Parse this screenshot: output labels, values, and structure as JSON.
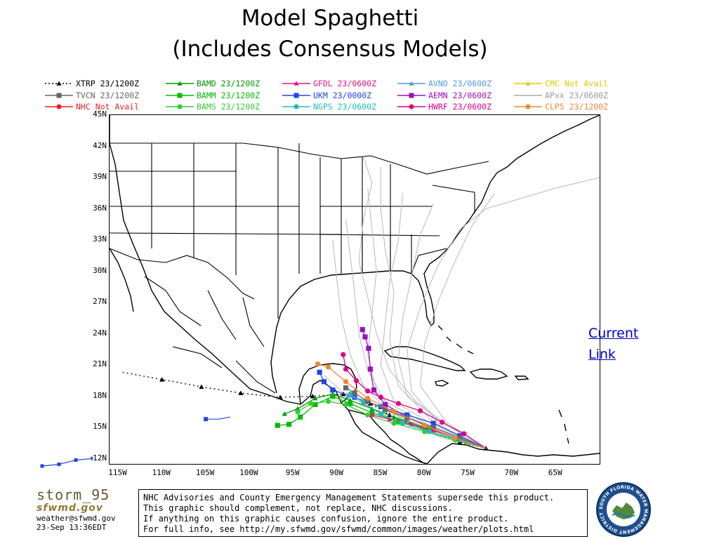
{
  "title": {
    "line1": "Model Spaghetti",
    "line2": "(Includes Consensus Models)"
  },
  "legend": [
    {
      "label": "XTRP  23/1200Z",
      "color": "#000000",
      "marker": "triangle",
      "dash": "2,3"
    },
    {
      "label": "BAMD 23/1200Z",
      "color": "#009900",
      "marker": "triangle",
      "dash": ""
    },
    {
      "label": "GFDL  23/0600Z",
      "color": "#ee1188",
      "marker": "triangle",
      "dash": ""
    },
    {
      "label": "AVNO 23/0600Z",
      "color": "#5599dd",
      "marker": "triangle",
      "dash": ""
    },
    {
      "label": "CMC Not Avail",
      "color": "#ddcc00",
      "marker": "triangle",
      "dash": ""
    },
    {
      "label": "TVCN 23/1200Z",
      "color": "#666666",
      "marker": "square",
      "dash": ""
    },
    {
      "label": "BAMM 23/1200Z",
      "color": "#00bb00",
      "marker": "square",
      "dash": ""
    },
    {
      "label": "UKM  23/0000Z",
      "color": "#2244ee",
      "marker": "square",
      "dash": ""
    },
    {
      "label": "AEMN 23/0600Z",
      "color": "#9911bb",
      "marker": "square",
      "dash": ""
    },
    {
      "label": "APxx 23/0600Z",
      "color": "#aaaaaa",
      "marker": "none",
      "dash": ""
    },
    {
      "label": "NHC  Not Avail",
      "color": "#ee2222",
      "marker": "circle",
      "dash": ""
    },
    {
      "label": "BAMS 23/1200Z",
      "color": "#33cc33",
      "marker": "circle",
      "dash": ""
    },
    {
      "label": "NGPS 23/0600Z",
      "color": "#22bbbb",
      "marker": "circle",
      "dash": ""
    },
    {
      "label": "HWRF 23/0600Z",
      "color": "#dd0088",
      "marker": "circle",
      "dash": ""
    },
    {
      "label": "CLP5 23/1200Z",
      "color": "#ee8833",
      "marker": "circle",
      "dash": ""
    }
  ],
  "map": {
    "lat_labels": [
      "45N",
      "42N",
      "39N",
      "36N",
      "33N",
      "30N",
      "27N",
      "24N",
      "21N",
      "18N",
      "15N",
      "12N"
    ],
    "lon_labels": [
      "115W",
      "110W",
      "105W",
      "100W",
      "95W",
      "90W",
      "85W",
      "80W",
      "75W",
      "70W",
      "65W"
    ],
    "lat_range": [
      11.5,
      45
    ],
    "lon_range": [
      -116,
      -60
    ]
  },
  "current_link": "Current Link",
  "logo": {
    "title": "storm_95",
    "sub": "sfwmd.gov",
    "email": "weather@sfwmd.gov",
    "timestamp": "23-Sep 13:36EDT"
  },
  "disclaimer": [
    "NHC Advisories and County Emergency Management Statements supersede this product.",
    "This graphic should complement, not replace, NHC discussions.",
    "If anything on this graphic causes confusion, ignore the entire product.",
    "For full info, see  http://my.sfwmd.gov/sfwmd/common/images/weather/plots.html"
  ],
  "seal_text": "SOUTH FLORIDA WATER MANAGEMENT DISTRICT",
  "tracks": [
    {
      "name": "XTRP",
      "color": "#000000",
      "marker": "triangle",
      "dash": "2,4",
      "points": [
        [
          -114.5,
          20.3
        ],
        [
          -110,
          19.6
        ],
        [
          -105.5,
          18.9
        ],
        [
          -101,
          18.3
        ],
        [
          -96.5,
          17.9
        ],
        [
          -92.8,
          18.0
        ],
        [
          -89.3,
          18.2
        ],
        [
          -86.2,
          17.3
        ],
        [
          -84.0,
          16.2
        ],
        [
          -80.0,
          14.8
        ],
        [
          -76.0,
          13.6
        ],
        [
          -73.0,
          13.0
        ]
      ]
    },
    {
      "name": "BAMD",
      "color": "#009900",
      "marker": "triangle",
      "dash": "",
      "points": [
        [
          -73.0,
          13.0
        ],
        [
          -76.5,
          14.0
        ],
        [
          -80.0,
          15.0
        ],
        [
          -83.5,
          16.0
        ],
        [
          -86.0,
          16.8
        ],
        [
          -88.5,
          17.6
        ],
        [
          -90.5,
          18.2
        ],
        [
          -92.5,
          17.8
        ],
        [
          -94.5,
          16.8
        ],
        [
          -96.0,
          16.3
        ]
      ]
    },
    {
      "name": "BAMM",
      "color": "#00bb00",
      "marker": "square",
      "dash": "",
      "points": [
        [
          -73.0,
          13.0
        ],
        [
          -76.0,
          13.9
        ],
        [
          -79.5,
          14.8
        ],
        [
          -83.0,
          15.6
        ],
        [
          -86.0,
          16.4
        ],
        [
          -88.5,
          17.3
        ],
        [
          -90.5,
          18.0
        ],
        [
          -92.5,
          17.2
        ],
        [
          -94.2,
          16.0
        ],
        [
          -95.5,
          15.3
        ],
        [
          -96.8,
          15.2
        ]
      ]
    },
    {
      "name": "BAMS",
      "color": "#33cc33",
      "marker": "circle",
      "dash": "",
      "points": [
        [
          -73.0,
          13.0
        ],
        [
          -76.5,
          13.8
        ],
        [
          -80.0,
          14.6
        ],
        [
          -83.5,
          15.4
        ],
        [
          -86.5,
          16.2
        ],
        [
          -89.0,
          17.2
        ],
        [
          -91.0,
          17.5
        ],
        [
          -93.0,
          17.3
        ],
        [
          -94.5,
          16.5
        ]
      ]
    },
    {
      "name": "GFDL",
      "color": "#ee1188",
      "marker": "triangle",
      "dash": "",
      "points": [
        [
          -73.0,
          13.0
        ],
        [
          -76.0,
          13.9
        ],
        [
          -79.0,
          14.7
        ],
        [
          -81.5,
          15.3
        ],
        [
          -84.0,
          15.8
        ],
        [
          -86.0,
          16.2
        ]
      ]
    },
    {
      "name": "HWRF",
      "color": "#dd0088",
      "marker": "circle",
      "dash": "",
      "points": [
        [
          -73.0,
          13.0
        ],
        [
          -75.5,
          14.4
        ],
        [
          -78.0,
          15.5
        ],
        [
          -80.5,
          16.6
        ],
        [
          -83.0,
          17.3
        ],
        [
          -85.0,
          17.9
        ],
        [
          -86.5,
          18.5
        ],
        [
          -87.8,
          19.5
        ],
        [
          -89.0,
          20.6
        ],
        [
          -89.3,
          22.0
        ]
      ]
    },
    {
      "name": "AEMN",
      "color": "#9911bb",
      "marker": "square",
      "dash": "",
      "points": [
        [
          -73.0,
          13.0
        ],
        [
          -76.0,
          14.0
        ],
        [
          -79.0,
          15.0
        ],
        [
          -82.0,
          16.0
        ],
        [
          -84.5,
          17.2
        ],
        [
          -85.8,
          18.6
        ],
        [
          -86.2,
          20.6
        ],
        [
          -86.4,
          22.6
        ],
        [
          -86.8,
          23.7
        ],
        [
          -87.1,
          24.4
        ]
      ]
    },
    {
      "name": "UKM",
      "color": "#2244ee",
      "marker": "square",
      "dash": "",
      "points": [
        [
          -73.0,
          13.0
        ],
        [
          -76.0,
          14.2
        ],
        [
          -79.0,
          15.4
        ],
        [
          -82.0,
          16.2
        ],
        [
          -85.0,
          17.0
        ],
        [
          -88.0,
          17.9
        ],
        [
          -90.5,
          18.6
        ],
        [
          -91.5,
          19.4
        ],
        [
          -92.0,
          20.3
        ]
      ]
    },
    {
      "name": "NGPS",
      "color": "#22bbbb",
      "marker": "circle",
      "dash": "",
      "points": [
        [
          -73.0,
          13.0
        ],
        [
          -76.0,
          13.8
        ],
        [
          -79.5,
          14.6
        ],
        [
          -82.5,
          15.4
        ],
        [
          -85.0,
          16.3
        ],
        [
          -87.0,
          17.4
        ],
        [
          -88.5,
          18.2
        ]
      ]
    },
    {
      "name": "AVNO",
      "color": "#5599dd",
      "marker": "triangle",
      "dash": "",
      "points": [
        [
          -73.0,
          13.0
        ],
        [
          -76.0,
          14.0
        ],
        [
          -79.0,
          15.0
        ],
        [
          -82.0,
          16.0
        ],
        [
          -84.5,
          16.8
        ],
        [
          -86.8,
          17.6
        ],
        [
          -88.8,
          18.0
        ]
      ]
    },
    {
      "name": "TVCN",
      "color": "#666666",
      "marker": "square",
      "dash": "",
      "points": [
        [
          -73.0,
          13.0
        ],
        [
          -76.0,
          14.0
        ],
        [
          -79.0,
          15.0
        ],
        [
          -82.0,
          15.9
        ],
        [
          -84.5,
          16.7
        ],
        [
          -86.5,
          17.5
        ],
        [
          -88.0,
          18.3
        ],
        [
          -89.0,
          18.8
        ]
      ]
    },
    {
      "name": "CLP5",
      "color": "#ee8833",
      "marker": "circle",
      "dash": "",
      "points": [
        [
          -73.0,
          13.0
        ],
        [
          -76.5,
          14.0
        ],
        [
          -80.0,
          15.2
        ],
        [
          -83.5,
          16.5
        ],
        [
          -86.5,
          17.8
        ],
        [
          -89.0,
          19.4
        ],
        [
          -91.0,
          20.8
        ],
        [
          -92.2,
          21.1
        ]
      ]
    }
  ],
  "apxx_tracks": [
    [
      [
        -73.0,
        13.0
      ],
      [
        -78.0,
        14.5
      ],
      [
        -83.0,
        16.0
      ],
      [
        -85.5,
        18.5
      ],
      [
        -86.5,
        22.0
      ],
      [
        -86.0,
        26.0
      ],
      [
        -85.5,
        30.0
      ],
      [
        -86.0,
        34.0
      ],
      [
        -86.5,
        38.0
      ]
    ],
    [
      [
        -73.0,
        13.0
      ],
      [
        -78.5,
        15.0
      ],
      [
        -83.5,
        17.5
      ],
      [
        -85.0,
        21.0
      ],
      [
        -84.5,
        25.0
      ],
      [
        -84.0,
        29.0
      ],
      [
        -83.0,
        33.0
      ],
      [
        -82.5,
        37.5
      ]
    ],
    [
      [
        -73.0,
        13.0
      ],
      [
        -78.0,
        15.5
      ],
      [
        -82.0,
        18.0
      ],
      [
        -83.0,
        21.5
      ],
      [
        -82.5,
        25.5
      ],
      [
        -81.5,
        29.5
      ],
      [
        -80.5,
        33.5
      ],
      [
        -79.0,
        36.5
      ]
    ],
    [
      [
        -73.0,
        13.0
      ],
      [
        -79.0,
        15.0
      ],
      [
        -84.5,
        17.5
      ],
      [
        -86.5,
        20.5
      ],
      [
        -87.5,
        24.0
      ],
      [
        -88.0,
        28.0
      ],
      [
        -88.5,
        31.5
      ],
      [
        -89.0,
        35.0
      ]
    ],
    [
      [
        -73.0,
        13.0
      ],
      [
        -79.0,
        14.5
      ],
      [
        -84.0,
        16.5
      ],
      [
        -87.0,
        19.0
      ],
      [
        -88.5,
        22.0
      ],
      [
        -89.5,
        25.5
      ],
      [
        -90.0,
        29.0
      ],
      [
        -90.5,
        33.0
      ]
    ],
    [
      [
        -73.0,
        13.0
      ],
      [
        -78.0,
        15.0
      ],
      [
        -81.5,
        18.5
      ],
      [
        -82.0,
        22.5
      ],
      [
        -80.5,
        26.5
      ],
      [
        -78.5,
        30.5
      ],
      [
        -76.0,
        34.0
      ],
      [
        -73.0,
        36.0
      ],
      [
        -65.0,
        38.0
      ],
      [
        -60.0,
        39.0
      ]
    ],
    [
      [
        -73.0,
        13.0
      ],
      [
        -77.5,
        15.5
      ],
      [
        -80.5,
        19.0
      ],
      [
        -80.0,
        23.0
      ],
      [
        -78.5,
        27.0
      ],
      [
        -76.5,
        31.0
      ],
      [
        -74.5,
        34.5
      ],
      [
        -72.0,
        37.5
      ]
    ],
    [
      [
        -73.0,
        13.0
      ],
      [
        -79.0,
        15.5
      ],
      [
        -83.0,
        19.0
      ],
      [
        -84.0,
        23.5
      ],
      [
        -83.5,
        28.0
      ],
      [
        -84.5,
        32.0
      ],
      [
        -85.0,
        36.0
      ],
      [
        -85.0,
        40.0
      ]
    ],
    [
      [
        -73.0,
        13.0
      ],
      [
        -78.0,
        14.0
      ],
      [
        -82.0,
        15.5
      ],
      [
        -86.5,
        17.0
      ],
      [
        -89.5,
        18.5
      ],
      [
        -91.5,
        20.0
      ]
    ],
    [
      [
        -73.0,
        13.0
      ],
      [
        -77.0,
        15.0
      ],
      [
        -81.0,
        17.5
      ],
      [
        -84.0,
        20.5
      ],
      [
        -85.5,
        24.0
      ],
      [
        -86.5,
        27.5
      ],
      [
        -87.5,
        31.0
      ],
      [
        -87.0,
        35.0
      ],
      [
        -86.0,
        38.5
      ],
      [
        -87.0,
        41.0
      ]
    ]
  ],
  "west_track": [
    [
      -122.5,
      12.0
    ],
    [
      -121.0,
      12.2
    ],
    [
      -119.5,
      12.7
    ],
    [
      -118.0,
      12.9
    ]
  ],
  "small_blue_track": [
    [
      -105.0,
      15.8
    ],
    [
      -103.5,
      15.8
    ],
    [
      -102.2,
      16.0
    ]
  ]
}
